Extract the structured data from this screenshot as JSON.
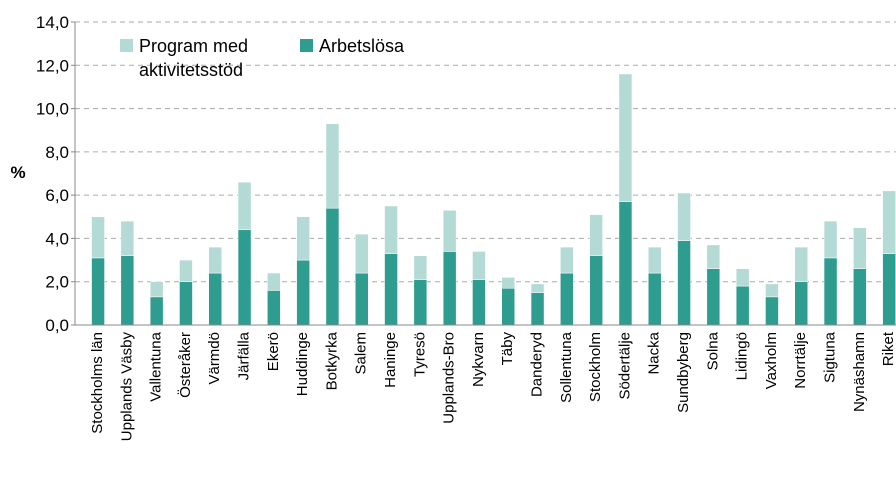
{
  "chart_data": {
    "type": "stacked_bar",
    "y_label": "%",
    "categories": [
      "Stockholms län",
      "Upplands Väsby",
      "Vallentuna",
      "Österåker",
      "Värmdö",
      "Järfälla",
      "Ekerö",
      "Huddinge",
      "Botkyrka",
      "Salem",
      "Haninge",
      "Tyresö",
      "Upplands-Bro",
      "Nykvarn",
      "Täby",
      "Danderyd",
      "Sollentuna",
      "Stockholm",
      "Södertälje",
      "Nacka",
      "Sundbyberg",
      "Solna",
      "Lidingö",
      "Vaxholm",
      "Norrtälje",
      "Sigtuna",
      "Nynäshamn",
      "Riket"
    ],
    "series": [
      {
        "name": "Program med aktivitetsstöd",
        "color": "#b4dad6",
        "values": [
          1.9,
          1.6,
          0.7,
          1.0,
          1.2,
          2.2,
          0.8,
          2.0,
          3.9,
          1.8,
          2.2,
          1.1,
          1.9,
          1.3,
          0.5,
          0.4,
          1.2,
          1.9,
          5.9,
          1.2,
          2.2,
          1.1,
          0.8,
          0.6,
          1.6,
          1.7,
          1.9,
          2.9
        ]
      },
      {
        "name": "Arbetslösa",
        "color": "#2e9c8e",
        "values": [
          3.1,
          3.2,
          1.3,
          2.0,
          2.4,
          4.4,
          1.6,
          3.0,
          5.4,
          2.4,
          3.3,
          2.1,
          3.4,
          2.1,
          1.7,
          1.5,
          2.4,
          3.2,
          5.7,
          2.4,
          3.9,
          2.6,
          1.8,
          1.3,
          2.0,
          3.1,
          2.6,
          3.3
        ]
      }
    ],
    "ylim": [
      0,
      14
    ],
    "yticks": [
      {
        "value": 0,
        "label": "0,0"
      },
      {
        "value": 2,
        "label": "2,0"
      },
      {
        "value": 4,
        "label": "4,0"
      },
      {
        "value": 6,
        "label": "6,0"
      },
      {
        "value": 8,
        "label": "8,0"
      },
      {
        "value": 10,
        "label": "10,0"
      },
      {
        "value": 12,
        "label": "12,0"
      },
      {
        "value": 14,
        "label": "14,0"
      }
    ],
    "grid": true
  }
}
